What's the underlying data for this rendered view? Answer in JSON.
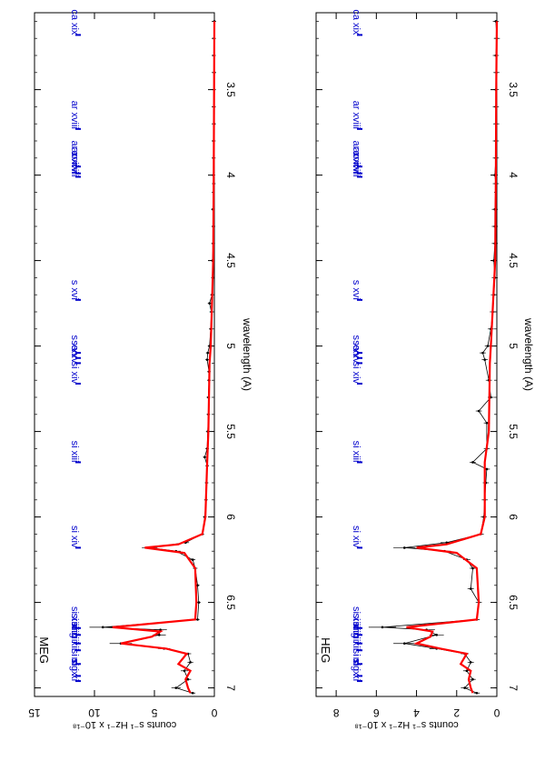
{
  "figure": {
    "x_label": "wavelength (A)",
    "y_label": "counts s⁻¹ Hz⁻¹ x 10⁻¹⁸",
    "data_color": "#000000",
    "model_color": "#ff0000",
    "line_id_color": "#0000cc"
  },
  "chart_data": [
    {
      "type": "line",
      "title": "MEG",
      "xlabel": "wavelength (A)",
      "ylabel": "counts s⁻¹ Hz⁻¹ x 10⁻¹⁸",
      "xlim": [
        3.05,
        7.05
      ],
      "ylim": [
        0,
        15
      ],
      "x_ticks": [
        3.5,
        4,
        4.5,
        5,
        5.5,
        6,
        6.5,
        7
      ],
      "x_tick_labels": [
        "3.5",
        "4",
        "4.5",
        "5",
        "5.5",
        "6",
        "6.5",
        "7"
      ],
      "y_ticks": [
        0,
        5,
        10,
        15
      ],
      "y_tick_labels": [
        "0",
        "5",
        "10",
        "15"
      ],
      "series": [
        {
          "name": "",
          "style": "points-with-errorbars",
          "color": "#000000",
          "points": [
            [
              3.1,
              0.0
            ],
            [
              3.2,
              0.02
            ],
            [
              3.3,
              0.03
            ],
            [
              3.4,
              0.0
            ],
            [
              3.5,
              0.02
            ],
            [
              3.6,
              0.03
            ],
            [
              3.7,
              0.02
            ],
            [
              3.8,
              0.05
            ],
            [
              3.9,
              0.05
            ],
            [
              4.0,
              0.08
            ],
            [
              4.05,
              0.05
            ],
            [
              4.2,
              0.12
            ],
            [
              4.3,
              0.08
            ],
            [
              4.4,
              0.1
            ],
            [
              4.5,
              0.15
            ],
            [
              4.6,
              0.12
            ],
            [
              4.7,
              0.2
            ],
            [
              4.75,
              0.4
            ],
            [
              4.8,
              0.25
            ],
            [
              4.9,
              0.3
            ],
            [
              5.0,
              0.4
            ],
            [
              5.04,
              0.55
            ],
            [
              5.08,
              0.6
            ],
            [
              5.15,
              0.45
            ],
            [
              5.2,
              0.45
            ],
            [
              5.3,
              0.5
            ],
            [
              5.4,
              0.5
            ],
            [
              5.5,
              0.55
            ],
            [
              5.6,
              0.6
            ],
            [
              5.65,
              0.8
            ],
            [
              5.7,
              0.6
            ],
            [
              5.8,
              0.65
            ],
            [
              5.9,
              0.7
            ],
            [
              6.0,
              0.8
            ],
            [
              6.1,
              1.0
            ],
            [
              6.15,
              2.4
            ],
            [
              6.18,
              5.4
            ],
            [
              6.2,
              3.2
            ],
            [
              6.25,
              1.8
            ],
            [
              6.3,
              1.6
            ],
            [
              6.4,
              1.4
            ],
            [
              6.5,
              1.3
            ],
            [
              6.6,
              1.4
            ],
            [
              6.645,
              9.3
            ],
            [
              6.66,
              4.5
            ],
            [
              6.69,
              4.6
            ],
            [
              6.74,
              7.8
            ],
            [
              6.77,
              4.2
            ],
            [
              6.8,
              2.2
            ],
            [
              6.85,
              2.0
            ],
            [
              6.9,
              2.5
            ],
            [
              6.95,
              2.2
            ],
            [
              7.0,
              3.2
            ],
            [
              7.03,
              1.8
            ]
          ]
        },
        {
          "name": "",
          "style": "model-histogram",
          "color": "#ff0000",
          "points": [
            [
              3.1,
              0.0
            ],
            [
              3.5,
              0.02
            ],
            [
              4.0,
              0.05
            ],
            [
              4.5,
              0.1
            ],
            [
              4.75,
              0.2
            ],
            [
              5.0,
              0.3
            ],
            [
              5.1,
              0.4
            ],
            [
              5.5,
              0.5
            ],
            [
              5.68,
              0.6
            ],
            [
              6.0,
              0.75
            ],
            [
              6.1,
              1.0
            ],
            [
              6.16,
              3.0
            ],
            [
              6.18,
              5.8
            ],
            [
              6.21,
              2.5
            ],
            [
              6.3,
              1.6
            ],
            [
              6.5,
              1.5
            ],
            [
              6.6,
              1.6
            ],
            [
              6.645,
              8.5
            ],
            [
              6.67,
              4.5
            ],
            [
              6.7,
              5.2
            ],
            [
              6.74,
              7.8
            ],
            [
              6.77,
              4.0
            ],
            [
              6.8,
              2.3
            ],
            [
              6.86,
              3.0
            ],
            [
              6.9,
              2.0
            ],
            [
              6.95,
              2.4
            ],
            [
              7.0,
              2.2
            ],
            [
              7.03,
              2.0
            ]
          ]
        }
      ],
      "line_ids": [
        {
          "label": "ca xix",
          "wavelength": 3.18
        },
        {
          "label": "ar xviii",
          "wavelength": 3.73
        },
        {
          "label": "ar xvii",
          "wavelength": 3.95
        },
        {
          "label": "ar xvii",
          "wavelength": 3.99
        },
        {
          "label": "ar xvii",
          "wavelength": 4.01
        },
        {
          "label": "s xvi",
          "wavelength": 4.73
        },
        {
          "label": "s xv",
          "wavelength": 5.04
        },
        {
          "label": "s xv",
          "wavelength": 5.07
        },
        {
          "label": "s xv",
          "wavelength": 5.1
        },
        {
          "label": "si xiv",
          "wavelength": 5.22
        },
        {
          "label": "si xiii",
          "wavelength": 5.68
        },
        {
          "label": "si xiv",
          "wavelength": 6.18
        },
        {
          "label": "si xiii",
          "wavelength": 6.65
        },
        {
          "label": "si xiii",
          "wavelength": 6.69
        },
        {
          "label": "si xiii",
          "wavelength": 6.74
        },
        {
          "label": "mg xii",
          "wavelength": 6.78
        },
        {
          "label": "si x",
          "wavelength": 6.86
        },
        {
          "label": "si ix",
          "wavelength": 6.93
        },
        {
          "label": "mg xi",
          "wavelength": 6.96
        }
      ]
    },
    {
      "type": "line",
      "title": "HEG",
      "xlabel": "wavelength (A)",
      "ylabel": "counts s⁻¹ Hz⁻¹ x 10⁻¹⁸",
      "xlim": [
        3.05,
        7.05
      ],
      "ylim": [
        0,
        9
      ],
      "x_ticks": [
        3.5,
        4,
        4.5,
        5,
        5.5,
        6,
        6.5,
        7
      ],
      "x_tick_labels": [
        "3.5",
        "4",
        "4.5",
        "5",
        "5.5",
        "6",
        "6.5",
        "7"
      ],
      "y_ticks": [
        0,
        2,
        4,
        6,
        8
      ],
      "y_tick_labels": [
        "0",
        "2",
        "4",
        "6",
        "8"
      ],
      "series": [
        {
          "name": "",
          "style": "points-with-errorbars",
          "color": "#000000",
          "points": [
            [
              3.1,
              0.05
            ],
            [
              3.2,
              0.0
            ],
            [
              3.3,
              0.05
            ],
            [
              3.4,
              0.02
            ],
            [
              3.5,
              0.05
            ],
            [
              3.6,
              0.05
            ],
            [
              3.7,
              0.03
            ],
            [
              3.8,
              0.05
            ],
            [
              3.9,
              0.05
            ],
            [
              4.0,
              0.1
            ],
            [
              4.05,
              0.05
            ],
            [
              4.2,
              0.1
            ],
            [
              4.3,
              0.1
            ],
            [
              4.4,
              0.1
            ],
            [
              4.5,
              0.15
            ],
            [
              4.6,
              0.1
            ],
            [
              4.7,
              0.15
            ],
            [
              4.8,
              0.2
            ],
            [
              4.9,
              0.3
            ],
            [
              5.0,
              0.45
            ],
            [
              5.04,
              0.7
            ],
            [
              5.08,
              0.6
            ],
            [
              5.2,
              0.4
            ],
            [
              5.3,
              0.3
            ],
            [
              5.38,
              0.9
            ],
            [
              5.45,
              0.5
            ],
            [
              5.6,
              0.5
            ],
            [
              5.68,
              1.2
            ],
            [
              5.72,
              0.5
            ],
            [
              5.8,
              0.55
            ],
            [
              5.9,
              0.6
            ],
            [
              6.0,
              0.65
            ],
            [
              6.1,
              0.8
            ],
            [
              6.15,
              2.5
            ],
            [
              6.18,
              4.6
            ],
            [
              6.2,
              2.6
            ],
            [
              6.25,
              1.5
            ],
            [
              6.3,
              1.2
            ],
            [
              6.42,
              1.3
            ],
            [
              6.5,
              0.9
            ],
            [
              6.6,
              1.0
            ],
            [
              6.645,
              5.7
            ],
            [
              6.66,
              3.5
            ],
            [
              6.69,
              3.0
            ],
            [
              6.74,
              4.6
            ],
            [
              6.77,
              3.0
            ],
            [
              6.8,
              1.6
            ],
            [
              6.85,
              1.3
            ],
            [
              6.9,
              1.5
            ],
            [
              6.95,
              1.2
            ],
            [
              7.0,
              1.6
            ],
            [
              7.03,
              1.0
            ]
          ]
        },
        {
          "name": "",
          "style": "model-histogram",
          "color": "#ff0000",
          "points": [
            [
              3.1,
              0.0
            ],
            [
              3.5,
              0.03
            ],
            [
              4.0,
              0.05
            ],
            [
              4.5,
              0.08
            ],
            [
              5.0,
              0.3
            ],
            [
              5.1,
              0.35
            ],
            [
              5.5,
              0.4
            ],
            [
              5.68,
              0.6
            ],
            [
              6.0,
              0.6
            ],
            [
              6.1,
              0.8
            ],
            [
              6.16,
              2.5
            ],
            [
              6.18,
              4.0
            ],
            [
              6.21,
              2.0
            ],
            [
              6.3,
              1.0
            ],
            [
              6.5,
              0.9
            ],
            [
              6.6,
              1.0
            ],
            [
              6.645,
              4.5
            ],
            [
              6.67,
              3.2
            ],
            [
              6.7,
              3.3
            ],
            [
              6.74,
              4.0
            ],
            [
              6.77,
              2.8
            ],
            [
              6.8,
              1.5
            ],
            [
              6.86,
              1.8
            ],
            [
              6.9,
              1.3
            ],
            [
              6.95,
              1.4
            ],
            [
              7.0,
              1.3
            ],
            [
              7.03,
              1.2
            ]
          ]
        }
      ],
      "line_ids": [
        {
          "label": "ca xix",
          "wavelength": 3.18
        },
        {
          "label": "ar xviii",
          "wavelength": 3.73
        },
        {
          "label": "ar xvii",
          "wavelength": 3.95
        },
        {
          "label": "ar xvii",
          "wavelength": 3.99
        },
        {
          "label": "ar xvii",
          "wavelength": 4.01
        },
        {
          "label": "s xvi",
          "wavelength": 4.73
        },
        {
          "label": "s xv",
          "wavelength": 5.04
        },
        {
          "label": "s xv",
          "wavelength": 5.07
        },
        {
          "label": "s xv",
          "wavelength": 5.1
        },
        {
          "label": "si xiv",
          "wavelength": 5.22
        },
        {
          "label": "si xiii",
          "wavelength": 5.68
        },
        {
          "label": "si xiv",
          "wavelength": 6.18
        },
        {
          "label": "si xiii",
          "wavelength": 6.65
        },
        {
          "label": "si xiii",
          "wavelength": 6.69
        },
        {
          "label": "si xiii",
          "wavelength": 6.74
        },
        {
          "label": "mg xii",
          "wavelength": 6.78
        },
        {
          "label": "si x",
          "wavelength": 6.86
        },
        {
          "label": "si ix",
          "wavelength": 6.93
        },
        {
          "label": "mg xi",
          "wavelength": 6.96
        }
      ]
    }
  ]
}
